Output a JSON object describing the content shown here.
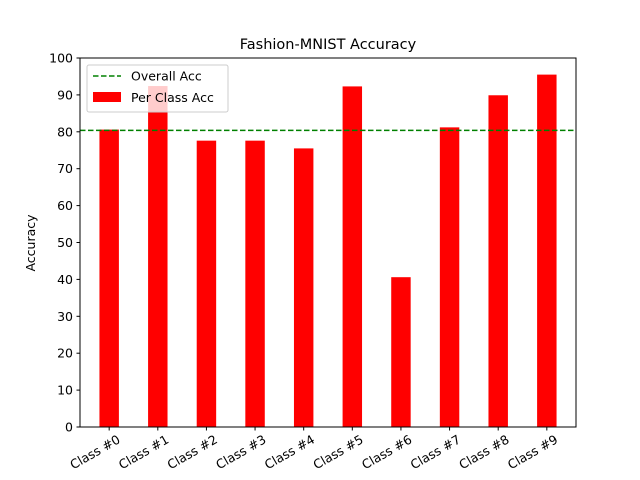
{
  "chart_data": {
    "type": "bar",
    "title": "Fashion-MNIST Accuracy",
    "xlabel": "",
    "ylabel": "Accuracy",
    "categories": [
      "Class #0",
      "Class #1",
      "Class #2",
      "Class #3",
      "Class #4",
      "Class #5",
      "Class #6",
      "Class #7",
      "Class #8",
      "Class #9"
    ],
    "series": [
      {
        "name": "Per Class Acc",
        "values": [
          80.6,
          92.4,
          77.6,
          77.6,
          75.5,
          92.3,
          40.6,
          81.2,
          89.9,
          95.5
        ],
        "color": "#ff0000"
      }
    ],
    "reference_line": {
      "name": "Overall Acc",
      "value": 80.4,
      "color": "#008000",
      "style": "dashed"
    },
    "ylim": [
      0,
      100
    ],
    "yticks": [
      0,
      10,
      20,
      30,
      40,
      50,
      60,
      70,
      80,
      90,
      100
    ],
    "grid": false,
    "legend_position": "top-left",
    "xtick_rotation": 30
  }
}
